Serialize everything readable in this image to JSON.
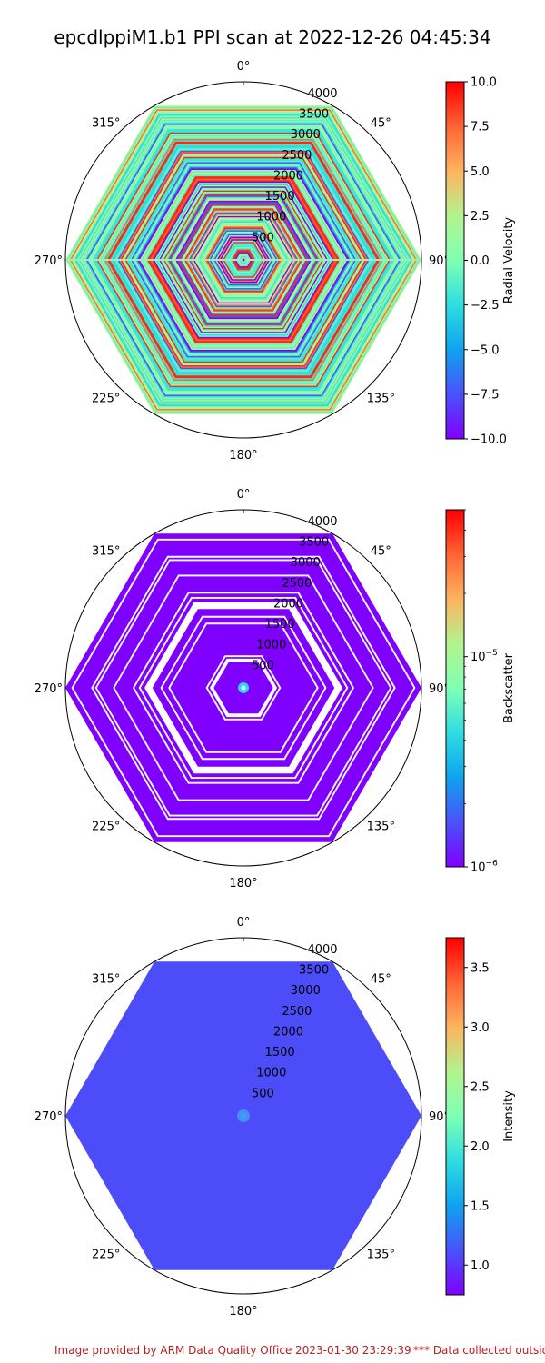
{
  "title": "epcdlppiM1.b1 PPI scan at 2022-12-26 04:45:34",
  "footer": {
    "left": "Image provided by ARM Data Quality Office 2023-01-30 23:29:39",
    "right": "*** Data collected outside"
  },
  "chart_data": [
    {
      "type": "polar-ppi",
      "title": "",
      "theta_ticks": [
        "0°",
        "45°",
        "90°",
        "135°",
        "180°",
        "225°",
        "270°",
        "315°"
      ],
      "r_ticks": [
        500,
        1000,
        1500,
        2000,
        2500,
        3000,
        3500,
        4000
      ],
      "r_max": 4000,
      "colorbar": {
        "label": "Radial Velocity",
        "scale": "linear",
        "colormap": "rainbow",
        "vmin": -10.0,
        "vmax": 10.0,
        "ticks": [
          10.0,
          7.5,
          5.0,
          2.5,
          0.0,
          -2.5,
          -5.0,
          -7.5,
          -10.0
        ],
        "tick_labels": [
          "10.0",
          "7.5",
          "5.0",
          "2.5",
          "0.0",
          "−2.5",
          "−5.0",
          "−7.5",
          "−10.0"
        ]
      },
      "pattern": "striped-mixed"
    },
    {
      "type": "polar-ppi",
      "title": "",
      "theta_ticks": [
        "0°",
        "45°",
        "90°",
        "135°",
        "180°",
        "225°",
        "270°",
        "315°"
      ],
      "r_ticks": [
        500,
        1000,
        1500,
        2000,
        2500,
        3000,
        3500,
        4000
      ],
      "r_max": 4000,
      "colorbar": {
        "label": "Backscatter",
        "scale": "log",
        "colormap": "rainbow",
        "vmin": 1e-06,
        "vmax": 5e-05,
        "ticks": [
          1e-05,
          1e-06
        ],
        "tick_labels": [
          "10−5",
          "10−6"
        ]
      },
      "pattern": "uniform-low-with-gaps"
    },
    {
      "type": "polar-ppi",
      "title": "",
      "theta_ticks": [
        "0°",
        "45°",
        "90°",
        "135°",
        "180°",
        "225°",
        "270°",
        "315°"
      ],
      "r_ticks": [
        500,
        1000,
        1500,
        2000,
        2500,
        3000,
        3500,
        4000
      ],
      "r_max": 4000,
      "colorbar": {
        "label": "Intensity",
        "scale": "linear",
        "colormap": "rainbow",
        "vmin": 0.75,
        "vmax": 3.75,
        "ticks": [
          3.5,
          3.0,
          2.5,
          2.0,
          1.5,
          1.0
        ],
        "tick_labels": [
          "3.5",
          "3.0",
          "2.5",
          "2.0",
          "1.5",
          "1.0"
        ]
      },
      "pattern": "uniform-fill",
      "fill_value": 1.0
    }
  ]
}
